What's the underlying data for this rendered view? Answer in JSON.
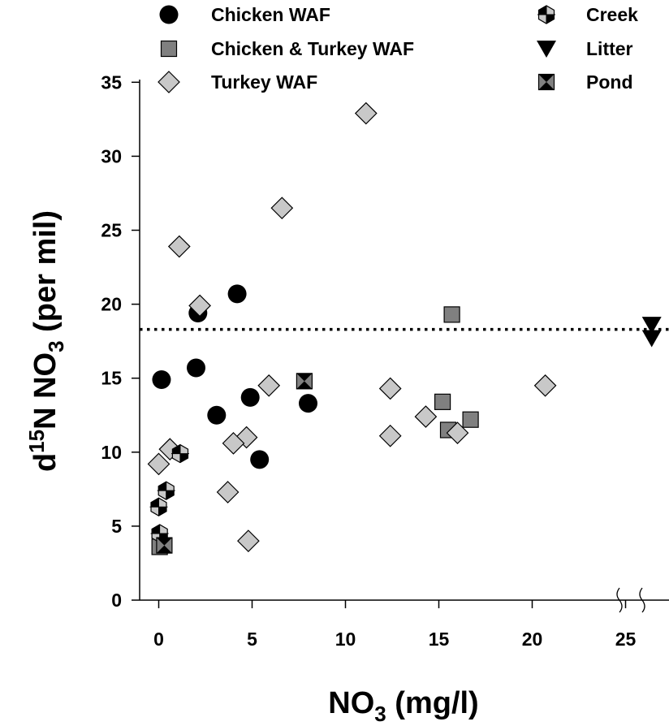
{
  "chart_data": {
    "type": "scatter",
    "xlabel": {
      "main": "NO",
      "sub": "3",
      "rest": " (mg/l)"
    },
    "ylabel": {
      "d": "d",
      "sup": "15",
      "mid": "N NO",
      "sub": "3",
      "rest": " (per mil)"
    },
    "xlim": [
      -1,
      26.5
    ],
    "ylim": [
      0,
      35
    ],
    "xticks": [
      0,
      5,
      10,
      15,
      20,
      25
    ],
    "yticks": [
      0,
      5,
      10,
      15,
      20,
      25,
      30,
      35
    ],
    "axis_break": "x",
    "reference_line": {
      "y": 18.3,
      "style": "dotted"
    },
    "colors": {
      "black": "#000000",
      "gray": "#808080",
      "lightgray": "#c8c8c8"
    },
    "series": [
      {
        "name": "Chicken WAF",
        "marker": "circle",
        "points": [
          [
            0.15,
            14.9
          ],
          [
            2.1,
            19.4
          ],
          [
            4.2,
            20.7
          ],
          [
            2.0,
            15.7
          ],
          [
            3.1,
            12.5
          ],
          [
            4.9,
            13.7
          ],
          [
            8.0,
            13.3
          ],
          [
            5.4,
            9.5
          ]
        ]
      },
      {
        "name": "Chicken & Turkey WAF",
        "marker": "square",
        "points": [
          [
            15.7,
            19.3
          ],
          [
            15.2,
            13.4
          ],
          [
            15.5,
            11.5
          ],
          [
            16.7,
            12.2
          ],
          [
            0.05,
            3.6
          ]
        ]
      },
      {
        "name": "Turkey WAF",
        "marker": "diamond",
        "points": [
          [
            11.1,
            32.9
          ],
          [
            6.6,
            26.5
          ],
          [
            1.1,
            23.9
          ],
          [
            2.2,
            19.9
          ],
          [
            5.9,
            14.5
          ],
          [
            12.4,
            14.3
          ],
          [
            20.7,
            14.5
          ],
          [
            14.3,
            12.4
          ],
          [
            12.4,
            11.1
          ],
          [
            16.0,
            11.3
          ],
          [
            4.7,
            11.0
          ],
          [
            4.0,
            10.6
          ],
          [
            0.6,
            10.2
          ],
          [
            0.0,
            9.2
          ],
          [
            3.7,
            7.3
          ],
          [
            4.8,
            4.0
          ]
        ]
      },
      {
        "name": "Creek",
        "marker": "half-hex",
        "points": [
          [
            1.15,
            9.9
          ],
          [
            0.4,
            7.4
          ],
          [
            0.0,
            6.3
          ],
          [
            0.05,
            4.5
          ]
        ]
      },
      {
        "name": "Litter",
        "marker": "triangle-down",
        "points": [
          [
            26.4,
            18.6
          ],
          [
            26.4,
            17.7
          ]
        ]
      },
      {
        "name": "Pond",
        "marker": "hourglass-square",
        "points": [
          [
            7.8,
            14.8
          ],
          [
            0.3,
            3.7
          ]
        ]
      }
    ]
  }
}
